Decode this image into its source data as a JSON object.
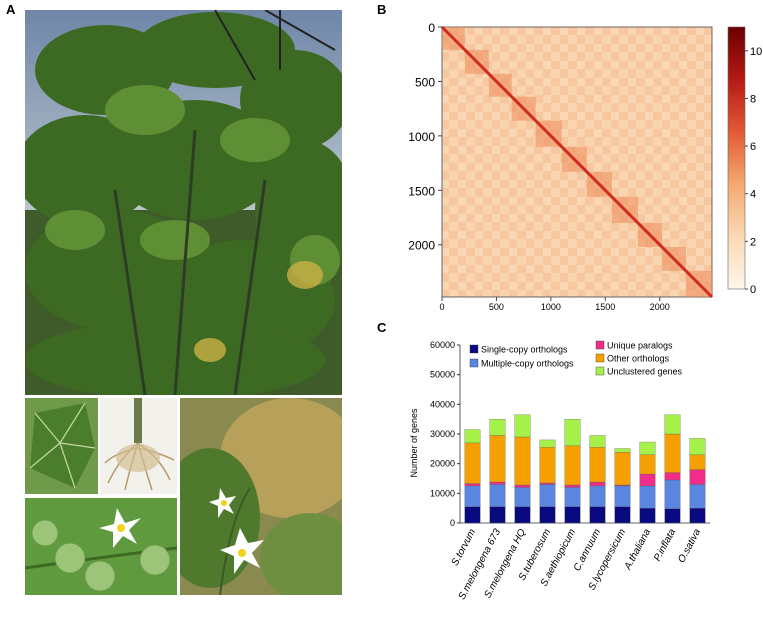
{
  "panels": {
    "a": {
      "label": "A"
    },
    "b": {
      "label": "B"
    },
    "c": {
      "label": "C"
    }
  },
  "heatmap": {
    "axis_ticks": [
      "0",
      "500",
      "1000",
      "1500",
      "2000"
    ],
    "colorbar_ticks": [
      "0",
      "2",
      "4",
      "6",
      "8",
      "10"
    ],
    "colors": {
      "low": "#fff2e0",
      "mid": "#f5b07a",
      "high": "#7a0000"
    }
  },
  "chart_data": {
    "type": "bar",
    "stacked": true,
    "ylabel": "Number of genes",
    "ylim": [
      0,
      60000
    ],
    "yticks": [
      "0",
      "10000",
      "20000",
      "30000",
      "40000",
      "50000",
      "60000"
    ],
    "legend_placement": "top",
    "categories": [
      "S.torvum",
      "S.melongena 673",
      "S.melongena HQ",
      "S.tuberosum",
      "S.aethiopicum",
      "C.annuum",
      "S.lycopersicum",
      "A.thaliana",
      "P.inflata",
      "O.sativa"
    ],
    "series": [
      {
        "name": "Single-copy orthologs",
        "color": "#0a0a80",
        "values": [
          5500,
          5500,
          5500,
          5500,
          5500,
          5500,
          5500,
          5000,
          4800,
          5000
        ]
      },
      {
        "name": "Multiple-copy orthologs",
        "color": "#5b86e0",
        "values": [
          7000,
          7500,
          6500,
          7500,
          6500,
          7000,
          7000,
          7500,
          9700,
          8000
        ]
      },
      {
        "name": "Unique paralogs",
        "color": "#f02e8a",
        "values": [
          800,
          800,
          800,
          500,
          800,
          1300,
          300,
          4000,
          2500,
          5000
        ]
      },
      {
        "name": "Other orthologs",
        "color": "#f5a000",
        "values": [
          13700,
          15700,
          16200,
          12000,
          13200,
          11700,
          11000,
          6500,
          13000,
          5000
        ]
      },
      {
        "name": "Unclustered genes",
        "color": "#a6f04a",
        "values": [
          4500,
          5500,
          7500,
          2500,
          9000,
          4000,
          1300,
          4300,
          6500,
          5500
        ]
      }
    ]
  }
}
